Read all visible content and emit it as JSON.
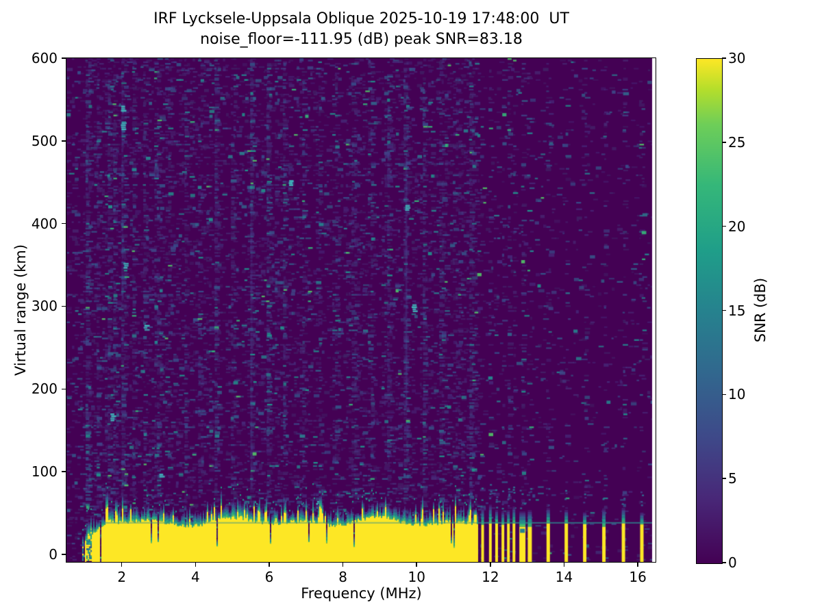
{
  "chart_data": {
    "type": "heatmap",
    "title": "IRF Lycksele-Uppsala Oblique 2025-10-19 17:48:00  UT",
    "subtitle": "noise_floor=-111.95 (dB) peak SNR=83.18",
    "xlabel": "Frequency (MHz)",
    "ylabel": "Virtual range (km)",
    "xlim": [
      0.5,
      16.5
    ],
    "ylim": [
      -10,
      600
    ],
    "x_ticks": [
      2,
      4,
      6,
      8,
      10,
      12,
      14,
      16
    ],
    "y_ticks": [
      0,
      100,
      200,
      300,
      400,
      500,
      600
    ],
    "grid": false,
    "colorbar": {
      "label": "SNR (dB)",
      "min": 0,
      "max": 30,
      "ticks": [
        0,
        5,
        10,
        15,
        20,
        25,
        30
      ],
      "colormap": "viridis"
    },
    "viridis_stops": [
      [
        0.0,
        "#440154"
      ],
      [
        0.13,
        "#482878"
      ],
      [
        0.25,
        "#3e4989"
      ],
      [
        0.38,
        "#31688e"
      ],
      [
        0.5,
        "#26828e"
      ],
      [
        0.62,
        "#1f9e89"
      ],
      [
        0.75,
        "#35b779"
      ],
      [
        0.87,
        "#6ece58"
      ],
      [
        0.94,
        "#b5de2b"
      ],
      [
        1.0,
        "#fde725"
      ]
    ],
    "data_extent": {
      "f_min": 0.5,
      "f_max": 16.39,
      "km_min": -10,
      "km_max": 600
    },
    "features": {
      "noise_floor_db": -111.95,
      "peak_snr_db": 83.18,
      "background_snr_db": 0,
      "echo_band": {
        "f_onset_mhz": 0.93,
        "f_full_mhz": 1.6,
        "f_end_mhz": 11.65,
        "solid_top_km": 37,
        "ragged_top_km_max": 58,
        "bottom_km": -10,
        "snr_db": 30
      },
      "artifact_line": {
        "km": 39,
        "f_start_mhz": 1.45,
        "f_end_mhz": 16.39
      },
      "stripes": [
        {
          "f": 11.79,
          "w": 4
        },
        {
          "f": 12.0,
          "w": 4
        },
        {
          "f": 12.17,
          "w": 4
        },
        {
          "f": 12.34,
          "w": 4
        },
        {
          "f": 12.49,
          "w": 4
        },
        {
          "f": 12.64,
          "w": 4
        },
        {
          "f": 12.87,
          "w": 9,
          "notch_km": [
            26,
            31
          ]
        },
        {
          "f": 13.07,
          "w": 6
        },
        {
          "f": 13.57,
          "w": 5
        },
        {
          "f": 14.06,
          "w": 5
        },
        {
          "f": 14.56,
          "w": 5
        },
        {
          "f": 15.08,
          "w": 5
        },
        {
          "f": 15.61,
          "w": 5
        },
        {
          "f": 16.11,
          "w": 5
        }
      ],
      "rfi_columns": [
        {
          "f": 1.08,
          "s": 2.5
        },
        {
          "f": 1.35,
          "s": 2.0
        },
        {
          "f": 1.62,
          "s": 3.0
        },
        {
          "f": 1.78,
          "s": 2.5
        },
        {
          "f": 2.02,
          "s": 4.0
        },
        {
          "f": 2.3,
          "s": 2.0
        },
        {
          "f": 2.62,
          "s": 2.5
        },
        {
          "f": 2.95,
          "s": 3.0
        },
        {
          "f": 3.3,
          "s": 2.0
        },
        {
          "f": 3.7,
          "s": 2.5
        },
        {
          "f": 4.15,
          "s": 2.0
        },
        {
          "f": 4.55,
          "s": 2.5
        },
        {
          "f": 5.0,
          "s": 2.0
        },
        {
          "f": 5.52,
          "s": 3.5
        },
        {
          "f": 5.95,
          "s": 2.0
        },
        {
          "f": 6.4,
          "s": 3.0
        },
        {
          "f": 6.9,
          "s": 2.0
        },
        {
          "f": 7.35,
          "s": 2.5
        },
        {
          "f": 7.8,
          "s": 2.0
        },
        {
          "f": 8.3,
          "s": 2.5
        },
        {
          "f": 8.75,
          "s": 2.0
        },
        {
          "f": 9.2,
          "s": 2.5
        },
        {
          "f": 9.72,
          "s": 5.0
        },
        {
          "f": 10.2,
          "s": 2.5
        },
        {
          "f": 10.65,
          "s": 2.0
        },
        {
          "f": 11.1,
          "s": 2.5
        },
        {
          "f": 11.45,
          "s": 2.0
        }
      ],
      "continuous_streaks": [
        {
          "f": 9.72,
          "km_lo": 180,
          "km_hi": 480,
          "alpha": 0.3
        },
        {
          "f": 5.52,
          "km_lo": 80,
          "km_hi": 430,
          "alpha": 0.16
        },
        {
          "f": 2.02,
          "km_lo": 300,
          "km_hi": 565,
          "alpha": 0.14
        }
      ],
      "noise_highlights": [
        {
          "f": 2.0,
          "km": 540
        },
        {
          "f": 2.0,
          "km": 520
        },
        {
          "f": 1.72,
          "km": 168
        },
        {
          "f": 2.08,
          "km": 350
        },
        {
          "f": 2.62,
          "km": 275
        },
        {
          "f": 9.72,
          "km": 420
        },
        {
          "f": 6.55,
          "km": 450
        },
        {
          "f": 3.05,
          "km": 95
        },
        {
          "f": 9.9,
          "km": 300
        },
        {
          "f": 7.3,
          "km": 62
        }
      ]
    }
  }
}
